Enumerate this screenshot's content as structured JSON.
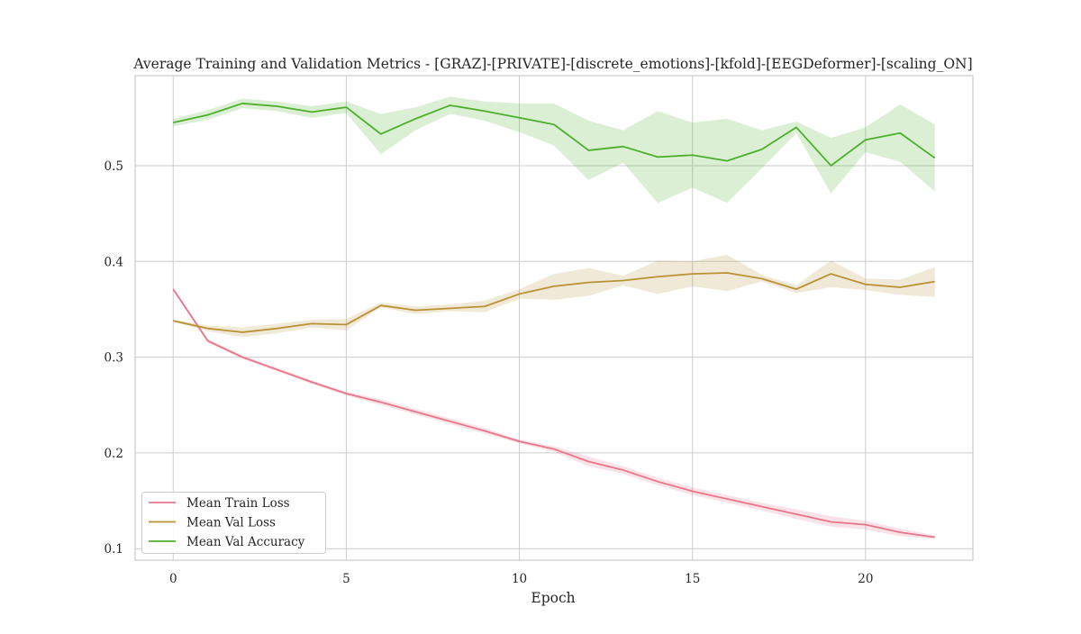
{
  "chart_data": {
    "type": "line",
    "title": "Average Training and Validation Metrics - [GRAZ]-[PRIVATE]-[discrete_emotions]-[kfold]-[EEGDeformer]-[scaling_ON]",
    "xlabel": "Epoch",
    "ylabel": "",
    "xlim": [
      -1.1,
      23.1
    ],
    "ylim": [
      0.088,
      0.594
    ],
    "xticks": [
      0,
      5,
      10,
      15,
      20
    ],
    "yticks": [
      0.1,
      0.2,
      0.3,
      0.4,
      0.5
    ],
    "grid": true,
    "legend_position": "lower-left",
    "x": [
      0,
      1,
      2,
      3,
      4,
      5,
      6,
      7,
      8,
      9,
      10,
      11,
      12,
      13,
      14,
      15,
      16,
      17,
      18,
      19,
      20,
      21,
      22
    ],
    "series": [
      {
        "name": "Mean Train Loss",
        "color": "#e8758a",
        "values": [
          0.371,
          0.317,
          0.3,
          0.287,
          0.274,
          0.262,
          0.253,
          0.243,
          0.233,
          0.223,
          0.212,
          0.204,
          0.191,
          0.182,
          0.17,
          0.16,
          0.152,
          0.144,
          0.136,
          0.128,
          0.125,
          0.117,
          0.112
        ],
        "lower": [
          0.369,
          0.315,
          0.298,
          0.285,
          0.272,
          0.26,
          0.25,
          0.24,
          0.23,
          0.22,
          0.21,
          0.201,
          0.186,
          0.178,
          0.166,
          0.156,
          0.148,
          0.14,
          0.131,
          0.123,
          0.12,
          0.113,
          0.11
        ],
        "upper": [
          0.373,
          0.319,
          0.302,
          0.289,
          0.276,
          0.264,
          0.256,
          0.246,
          0.236,
          0.226,
          0.214,
          0.207,
          0.196,
          0.186,
          0.174,
          0.164,
          0.156,
          0.148,
          0.141,
          0.134,
          0.129,
          0.121,
          0.114
        ]
      },
      {
        "name": "Mean Val Loss",
        "color": "#b89235",
        "values": [
          0.338,
          0.33,
          0.326,
          0.33,
          0.335,
          0.334,
          0.354,
          0.349,
          0.351,
          0.353,
          0.366,
          0.374,
          0.378,
          0.38,
          0.384,
          0.387,
          0.388,
          0.382,
          0.371,
          0.387,
          0.376,
          0.373,
          0.379
        ],
        "lower": [
          0.337,
          0.327,
          0.321,
          0.325,
          0.331,
          0.328,
          0.352,
          0.345,
          0.348,
          0.347,
          0.361,
          0.36,
          0.364,
          0.375,
          0.366,
          0.374,
          0.369,
          0.379,
          0.367,
          0.373,
          0.37,
          0.365,
          0.363
        ],
        "upper": [
          0.339,
          0.333,
          0.331,
          0.335,
          0.339,
          0.34,
          0.357,
          0.353,
          0.355,
          0.359,
          0.371,
          0.387,
          0.393,
          0.385,
          0.401,
          0.4,
          0.407,
          0.386,
          0.375,
          0.401,
          0.382,
          0.381,
          0.394
        ]
      },
      {
        "name": "Mean Val Accuracy",
        "color": "#4daf2b",
        "values": [
          0.545,
          0.553,
          0.565,
          0.562,
          0.556,
          0.561,
          0.533,
          0.549,
          0.563,
          0.557,
          0.55,
          0.543,
          0.516,
          0.52,
          0.509,
          0.511,
          0.505,
          0.517,
          0.54,
          0.5,
          0.527,
          0.534,
          0.508
        ],
        "lower": [
          0.541,
          0.548,
          0.56,
          0.557,
          0.55,
          0.555,
          0.512,
          0.537,
          0.554,
          0.547,
          0.535,
          0.521,
          0.485,
          0.503,
          0.461,
          0.477,
          0.461,
          0.497,
          0.534,
          0.471,
          0.514,
          0.504,
          0.473
        ],
        "upper": [
          0.549,
          0.558,
          0.57,
          0.567,
          0.562,
          0.567,
          0.554,
          0.561,
          0.572,
          0.567,
          0.565,
          0.565,
          0.547,
          0.537,
          0.557,
          0.545,
          0.549,
          0.537,
          0.546,
          0.529,
          0.54,
          0.564,
          0.543
        ]
      }
    ]
  }
}
